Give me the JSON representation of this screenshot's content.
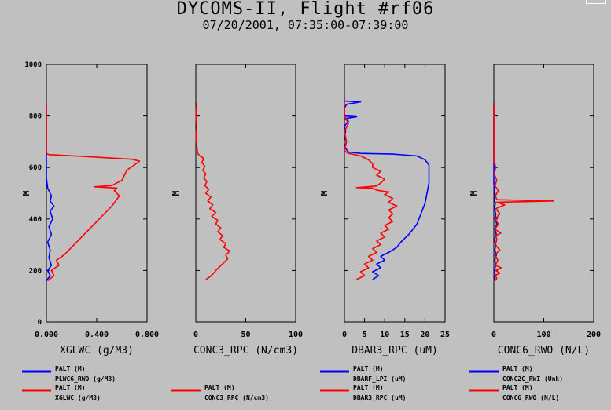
{
  "title": "DYCOMS-II, Flight #rf06",
  "subtitle": "07/20/2001, 07:35:00-07:39:00",
  "colors": {
    "background": "#c0c0c0",
    "blue": "#0000ff",
    "red": "#ff0000",
    "purple": "#800080"
  },
  "chart_data": [
    {
      "type": "line",
      "title": "",
      "xlabel": "XGLWC (g/M3)",
      "ylabel": "M",
      "xlim": [
        0,
        0.8
      ],
      "ylim": [
        0,
        1000
      ],
      "xticks": [
        "0.000",
        "0.400",
        "0.800"
      ],
      "yticks": [
        "0",
        "200",
        "400",
        "600",
        "800",
        "1000"
      ],
      "series": [
        {
          "name": "PLWC6_RWO",
          "color": "blue",
          "points": [
            [
              0.0,
              160
            ],
            [
              0.03,
              180
            ],
            [
              0.01,
              200
            ],
            [
              0.04,
              220
            ],
            [
              0.02,
              250
            ],
            [
              0.03,
              280
            ],
            [
              0.01,
              310
            ],
            [
              0.04,
              340
            ],
            [
              0.02,
              370
            ],
            [
              0.05,
              400
            ],
            [
              0.03,
              430
            ],
            [
              0.06,
              450
            ],
            [
              0.03,
              470
            ],
            [
              0.04,
              490
            ],
            [
              0.01,
              520
            ],
            [
              0.0,
              560
            ],
            [
              0.0,
              640
            ],
            [
              0.0,
              650
            ],
            [
              0.0,
              850
            ]
          ]
        },
        {
          "name": "XGLWC",
          "color": "red",
          "points": [
            [
              0.01,
              160
            ],
            [
              0.06,
              180
            ],
            [
              0.04,
              200
            ],
            [
              0.1,
              220
            ],
            [
              0.08,
              240
            ],
            [
              0.14,
              260
            ],
            [
              0.2,
              290
            ],
            [
              0.28,
              330
            ],
            [
              0.34,
              360
            ],
            [
              0.4,
              390
            ],
            [
              0.44,
              410
            ],
            [
              0.48,
              430
            ],
            [
              0.52,
              450
            ],
            [
              0.55,
              470
            ],
            [
              0.58,
              490
            ],
            [
              0.54,
              510
            ],
            [
              0.56,
              520
            ],
            [
              0.38,
              525
            ],
            [
              0.52,
              530
            ],
            [
              0.6,
              550
            ],
            [
              0.62,
              570
            ],
            [
              0.64,
              590
            ],
            [
              0.7,
              610
            ],
            [
              0.74,
              625
            ],
            [
              0.68,
              632
            ],
            [
              0.3,
              643
            ],
            [
              0.02,
              650
            ],
            [
              0.0,
              655
            ],
            [
              0.0,
              850
            ]
          ]
        }
      ],
      "legend": [
        {
          "line1": "PALT (M)",
          "line2": "PLWC6_RWO (g/M3)",
          "color": "blue"
        },
        {
          "line1": "PALT (M)",
          "line2": "XGLWC (g/M3)",
          "color": "red"
        }
      ]
    },
    {
      "type": "line",
      "title": "",
      "xlabel": "CONC3_RPC (N/cm3)",
      "ylabel": "M",
      "xlim": [
        0,
        100
      ],
      "ylim": [
        0,
        1000
      ],
      "xticks": [
        "0",
        "50",
        "100"
      ],
      "yticks": [],
      "series": [
        {
          "name": "CONC3_RPC",
          "color": "red",
          "points": [
            [
              10,
              165
            ],
            [
              14,
              175
            ],
            [
              18,
              190
            ],
            [
              20,
              200
            ],
            [
              24,
              215
            ],
            [
              28,
              230
            ],
            [
              32,
              245
            ],
            [
              30,
              260
            ],
            [
              34,
              275
            ],
            [
              28,
              290
            ],
            [
              30,
              305
            ],
            [
              24,
              320
            ],
            [
              27,
              335
            ],
            [
              22,
              350
            ],
            [
              25,
              365
            ],
            [
              20,
              380
            ],
            [
              22,
              395
            ],
            [
              16,
              410
            ],
            [
              20,
              425
            ],
            [
              14,
              440
            ],
            [
              17,
              455
            ],
            [
              12,
              470
            ],
            [
              15,
              485
            ],
            [
              10,
              500
            ],
            [
              13,
              515
            ],
            [
              9,
              530
            ],
            [
              11,
              545
            ],
            [
              8,
              560
            ],
            [
              10,
              575
            ],
            [
              7,
              590
            ],
            [
              9,
              605
            ],
            [
              6,
              620
            ],
            [
              8,
              635
            ],
            [
              4,
              645
            ],
            [
              2,
              655
            ],
            [
              1,
              680
            ],
            [
              0,
              720
            ],
            [
              1,
              760
            ],
            [
              0,
              800
            ],
            [
              1,
              850
            ]
          ]
        }
      ],
      "legend": [
        {
          "line1": "PALT (M)",
          "line2": "CONC3_RPC (N/cm3)",
          "color": "red"
        }
      ]
    },
    {
      "type": "line",
      "title": "",
      "xlabel": "DBAR3_RPC (uM)",
      "ylabel": "M",
      "xlim": [
        0,
        25
      ],
      "ylim": [
        0,
        1000
      ],
      "xticks": [
        "0",
        "5",
        "10",
        "15",
        "20",
        "25"
      ],
      "yticks": [],
      "series": [
        {
          "name": "DBARF_LPI",
          "color": "blue",
          "points": [
            [
              7,
              165
            ],
            [
              8.5,
              180
            ],
            [
              7,
              195
            ],
            [
              9,
              210
            ],
            [
              8,
              225
            ],
            [
              10,
              240
            ],
            [
              9,
              255
            ],
            [
              11,
              270
            ],
            [
              13,
              290
            ],
            [
              14,
              310
            ],
            [
              16,
              340
            ],
            [
              18,
              380
            ],
            [
              19,
              420
            ],
            [
              20,
              460
            ],
            [
              20.5,
              500
            ],
            [
              21,
              540
            ],
            [
              21,
              580
            ],
            [
              21,
              610
            ],
            [
              20,
              630
            ],
            [
              18,
              645
            ],
            [
              12,
              652
            ],
            [
              4,
              655
            ],
            [
              1,
              660
            ],
            [
              0,
              680
            ],
            [
              0.5,
              700
            ],
            [
              0,
              720
            ],
            [
              0.3,
              740
            ],
            [
              0,
              760
            ],
            [
              1,
              780
            ],
            [
              0,
              790
            ],
            [
              3,
              797
            ],
            [
              0,
              800
            ],
            [
              0,
              830
            ],
            [
              0.5,
              845
            ],
            [
              4,
              855
            ],
            [
              0,
              858
            ],
            [
              0,
              860
            ]
          ]
        },
        {
          "name": "DBAR3_RPC",
          "color": "red",
          "points": [
            [
              3,
              165
            ],
            [
              5,
              180
            ],
            [
              4,
              195
            ],
            [
              6,
              210
            ],
            [
              5,
              225
            ],
            [
              7,
              240
            ],
            [
              6,
              255
            ],
            [
              8,
              270
            ],
            [
              7,
              285
            ],
            [
              9,
              300
            ],
            [
              8,
              315
            ],
            [
              10,
              330
            ],
            [
              9,
              345
            ],
            [
              11,
              360
            ],
            [
              10,
              375
            ],
            [
              12,
              390
            ],
            [
              11,
              405
            ],
            [
              12,
              420
            ],
            [
              11,
              435
            ],
            [
              13,
              450
            ],
            [
              11,
              465
            ],
            [
              12,
              480
            ],
            [
              10,
              495
            ],
            [
              11,
              505
            ],
            [
              8,
              512
            ],
            [
              7,
              520
            ],
            [
              3,
              522
            ],
            [
              8,
              528
            ],
            [
              9,
              540
            ],
            [
              10,
              555
            ],
            [
              8,
              570
            ],
            [
              9,
              585
            ],
            [
              7,
              600
            ],
            [
              7,
              615
            ],
            [
              6,
              630
            ],
            [
              4,
              645
            ],
            [
              1,
              655
            ],
            [
              0,
              665
            ],
            [
              0.5,
              700
            ],
            [
              0,
              740
            ],
            [
              1,
              770
            ],
            [
              0,
              800
            ],
            [
              0,
              860
            ]
          ]
        }
      ],
      "legend": [
        {
          "line1": "PALT (M)",
          "line2": "DBARF_LPI (uM)",
          "color": "blue"
        },
        {
          "line1": "PALT (M)",
          "line2": "DBAR3_RPC (uM)",
          "color": "red"
        }
      ]
    },
    {
      "type": "line",
      "title": "",
      "xlabel": "CONC6_RWO (N/L)",
      "ylabel": "M",
      "xlim": [
        0,
        200
      ],
      "ylim": [
        0,
        1000
      ],
      "xticks": [
        "0",
        "100",
        "200"
      ],
      "yticks": [],
      "series": [
        {
          "name": "CONC2C_RWI",
          "color": "blue",
          "points": [
            [
              1,
              165
            ],
            [
              3,
              180
            ],
            [
              1,
              200
            ],
            [
              4,
              220
            ],
            [
              2,
              240
            ],
            [
              5,
              260
            ],
            [
              2,
              280
            ],
            [
              4,
              300
            ],
            [
              1,
              320
            ],
            [
              5,
              340
            ],
            [
              2,
              360
            ],
            [
              6,
              380
            ],
            [
              3,
              400
            ],
            [
              4,
              420
            ],
            [
              1,
              440
            ],
            [
              3,
              460
            ],
            [
              1,
              480
            ],
            [
              2,
              500
            ],
            [
              0,
              540
            ],
            [
              0,
              600
            ],
            [
              0,
              700
            ],
            [
              0,
              850
            ]
          ]
        },
        {
          "name": "CONC6_RWO",
          "color": "red",
          "points": [
            [
              3,
              160
            ],
            [
              6,
              170
            ],
            [
              2,
              180
            ],
            [
              12,
              190
            ],
            [
              4,
              200
            ],
            [
              15,
              210
            ],
            [
              3,
              220
            ],
            [
              8,
              240
            ],
            [
              2,
              260
            ],
            [
              12,
              280
            ],
            [
              3,
              300
            ],
            [
              6,
              320
            ],
            [
              4,
              335
            ],
            [
              14,
              345
            ],
            [
              2,
              360
            ],
            [
              9,
              380
            ],
            [
              3,
              400
            ],
            [
              12,
              420
            ],
            [
              4,
              440
            ],
            [
              22,
              455
            ],
            [
              5,
              465
            ],
            [
              120,
              470
            ],
            [
              6,
              475
            ],
            [
              3,
              490
            ],
            [
              9,
              510
            ],
            [
              2,
              530
            ],
            [
              6,
              550
            ],
            [
              1,
              575
            ],
            [
              4,
              600
            ],
            [
              2,
              615
            ],
            [
              0,
              625
            ],
            [
              0,
              700
            ],
            [
              0,
              850
            ]
          ]
        }
      ],
      "legend": [
        {
          "line1": "PALT (M)",
          "line2": "CONC2C_RWI (Unk)",
          "color": "blue"
        },
        {
          "line1": "PALT (M)",
          "line2": "CONC6_RWO (N/L)",
          "color": "red"
        }
      ]
    }
  ]
}
